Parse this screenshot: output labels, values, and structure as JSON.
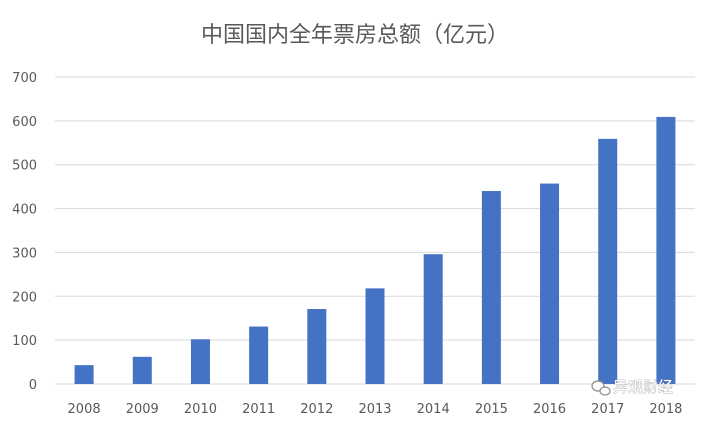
{
  "chart_data": {
    "type": "bar",
    "title": "中国国内全年票房总额（亿元）",
    "categories": [
      "2008",
      "2009",
      "2010",
      "2011",
      "2012",
      "2013",
      "2014",
      "2015",
      "2016",
      "2017",
      "2018"
    ],
    "series": [
      {
        "values": [
          43,
          62,
          102,
          131,
          171,
          218,
          296,
          440,
          457,
          559,
          609
        ]
      }
    ],
    "xlabel": "",
    "ylabel": "",
    "ylim": [
      0,
      700
    ],
    "yticks": [
      0,
      100,
      200,
      300,
      400,
      500,
      600,
      700
    ],
    "grid": true,
    "legend": "none",
    "colors": {
      "bar": "#4472c4",
      "grid": "#d9d9d9",
      "text": "#595959"
    }
  },
  "watermark": {
    "text": "异观财经",
    "icon": "wechat-icon"
  }
}
